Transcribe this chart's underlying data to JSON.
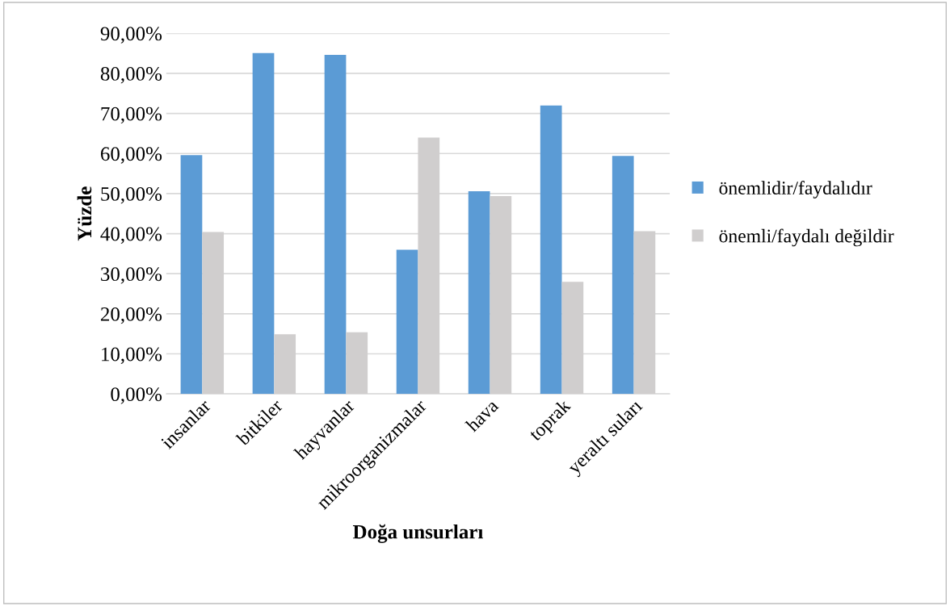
{
  "chart_data": {
    "type": "bar",
    "xlabel": "Doğa unsurları",
    "ylabel": "Yüzde",
    "categories": [
      "insanlar",
      "bitkiler",
      "hayvanlar",
      "mikroorganizmalar",
      "hava",
      "toprak",
      "yeraltı suları"
    ],
    "series": [
      {
        "name": "önemlidir/faydalıdır",
        "color": "#5b9bd5",
        "values": [
          59.6,
          85.1,
          84.6,
          36.0,
          50.6,
          72.0,
          59.4
        ]
      },
      {
        "name": "önemli/faydalı değildir",
        "color": "#d0cece",
        "values": [
          40.4,
          14.9,
          15.4,
          64.0,
          49.4,
          28.0,
          40.6
        ]
      }
    ],
    "ylim": [
      0,
      90
    ],
    "yticks": [
      {
        "value": 0,
        "label": "0,00%"
      },
      {
        "value": 10,
        "label": "10,00%"
      },
      {
        "value": 20,
        "label": "20,00%"
      },
      {
        "value": 30,
        "label": "30,00%"
      },
      {
        "value": 40,
        "label": "40,00%"
      },
      {
        "value": 50,
        "label": "50,00%"
      },
      {
        "value": 60,
        "label": "60,00%"
      },
      {
        "value": 70,
        "label": "70,00%"
      },
      {
        "value": 80,
        "label": "80,00%"
      },
      {
        "value": 90,
        "label": "90,00%"
      }
    ],
    "grid": "y",
    "legend": "right"
  }
}
